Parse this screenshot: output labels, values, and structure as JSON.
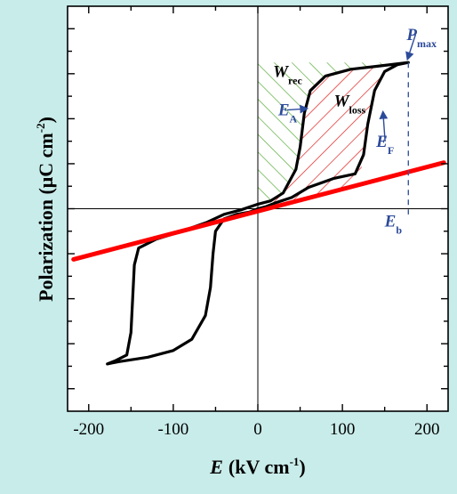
{
  "chart_data": {
    "type": "line",
    "title": "",
    "xlabel": {
      "symbol": "E",
      "unit": "(kV cm",
      "exp": "-1",
      "close": ")"
    },
    "ylabel": {
      "text": "Polarization (μC cm",
      "exp": "-2",
      "close": ")"
    },
    "xlim": [
      -225,
      225
    ],
    "ylim": [
      -18,
      18
    ],
    "x_ticks": [
      -200,
      -100,
      0,
      100,
      200
    ],
    "x_tick_labels": [
      "-200",
      "-100",
      "0",
      "100",
      "200"
    ],
    "y_tick_labels": "none",
    "grid": false,
    "series": [
      {
        "kind": "hysteresis-loop",
        "color": "#000000",
        "points": [
          [
            178,
            13.0
          ],
          [
            165,
            12.8
          ],
          [
            150,
            12.2
          ],
          [
            138,
            10.5
          ],
          [
            130,
            7.5
          ],
          [
            125,
            4.8
          ],
          [
            115,
            3.1
          ],
          [
            90,
            2.7
          ],
          [
            60,
            1.9
          ],
          [
            40,
            1.0
          ],
          [
            20,
            0.5
          ],
          [
            10,
            0.2
          ],
          [
            0,
            0.0
          ],
          [
            -10,
            -0.3
          ],
          [
            -25,
            -0.5
          ],
          [
            -40,
            -0.9
          ],
          [
            -50,
            -2.0
          ],
          [
            -53,
            -4.0
          ],
          [
            -56,
            -7.0
          ],
          [
            -62,
            -9.5
          ],
          [
            -78,
            -11.6
          ],
          [
            -100,
            -12.6
          ],
          [
            -130,
            -13.2
          ],
          [
            -165,
            -13.6
          ],
          [
            -178,
            -13.8
          ],
          [
            -168,
            -13.5
          ],
          [
            -155,
            -13.0
          ],
          [
            -150,
            -11.0
          ],
          [
            -148,
            -8.0
          ],
          [
            -146,
            -5.0
          ],
          [
            -141,
            -3.5
          ],
          [
            -120,
            -2.7
          ],
          [
            -90,
            -2.0
          ],
          [
            -60,
            -1.2
          ],
          [
            -40,
            -0.5
          ],
          [
            -20,
            -0.1
          ],
          [
            0,
            0.4
          ],
          [
            15,
            0.7
          ],
          [
            30,
            1.4
          ],
          [
            45,
            3.5
          ],
          [
            50,
            5.5
          ],
          [
            55,
            8.5
          ],
          [
            62,
            10.5
          ],
          [
            80,
            11.8
          ],
          [
            110,
            12.4
          ],
          [
            145,
            12.7
          ],
          [
            178,
            13.0
          ]
        ]
      },
      {
        "kind": "linear-fit",
        "color": "#ff0000",
        "points": [
          [
            -218,
            -4.5
          ],
          [
            220,
            4.1
          ]
        ]
      }
    ],
    "shaded_regions": [
      {
        "name": "W_rec",
        "color": "#5aac3a",
        "pattern": "hatch-forward",
        "polygon": [
          [
            0,
            13.0
          ],
          [
            178,
            13.0
          ],
          [
            145,
            12.7
          ],
          [
            110,
            12.4
          ],
          [
            80,
            11.8
          ],
          [
            62,
            10.5
          ],
          [
            55,
            8.5
          ],
          [
            50,
            5.5
          ],
          [
            45,
            3.5
          ],
          [
            30,
            1.4
          ],
          [
            15,
            0.7
          ],
          [
            0,
            0.4
          ]
        ]
      },
      {
        "name": "W_loss",
        "color": "#e02020",
        "pattern": "hatch-backward",
        "polygon": [
          [
            178,
            13.0
          ],
          [
            145,
            12.7
          ],
          [
            110,
            12.4
          ],
          [
            80,
            11.8
          ],
          [
            62,
            10.5
          ],
          [
            55,
            8.5
          ],
          [
            50,
            5.5
          ],
          [
            45,
            3.5
          ],
          [
            30,
            1.4
          ],
          [
            15,
            0.7
          ],
          [
            0,
            0.4
          ],
          [
            0,
            -0.2
          ],
          [
            40,
            0.65
          ],
          [
            90,
            1.6
          ],
          [
            120,
            2.2
          ],
          [
            125,
            4.8
          ],
          [
            130,
            7.5
          ],
          [
            138,
            10.5
          ],
          [
            150,
            12.2
          ],
          [
            165,
            12.8
          ]
        ]
      }
    ],
    "reference_lines": [
      {
        "orientation": "vertical",
        "x": 178,
        "y_from": -0.5,
        "y_to": 13.0,
        "style": "dashed",
        "color": "#3a55a0"
      }
    ],
    "annotations": [
      {
        "name": "P_max",
        "main": "P",
        "sub": "max",
        "x": 176,
        "y": 15.0,
        "color": "#2c4a9a",
        "arrow_to": [
          177,
          13.3
        ]
      },
      {
        "name": "W_rec",
        "main": "W",
        "sub": "rec",
        "x": 18,
        "y": 11.7,
        "color": "#000000"
      },
      {
        "name": "W_loss",
        "main": "W",
        "sub": "loss",
        "x": 90,
        "y": 9.1,
        "color": "#000000"
      },
      {
        "name": "E_A",
        "main": "E",
        "sub": "A",
        "x": 24,
        "y": 8.3,
        "color": "#2c4a9a",
        "arrow_to": [
          58,
          8.9
        ]
      },
      {
        "name": "E_F",
        "main": "E",
        "sub": "F",
        "x": 140,
        "y": 5.5,
        "color": "#2c4a9a",
        "arrow_to": [
          148,
          8.6
        ]
      },
      {
        "name": "E_b",
        "main": "E",
        "sub": "b",
        "x": 150,
        "y": -1.6,
        "color": "#2c4a9a"
      }
    ]
  }
}
